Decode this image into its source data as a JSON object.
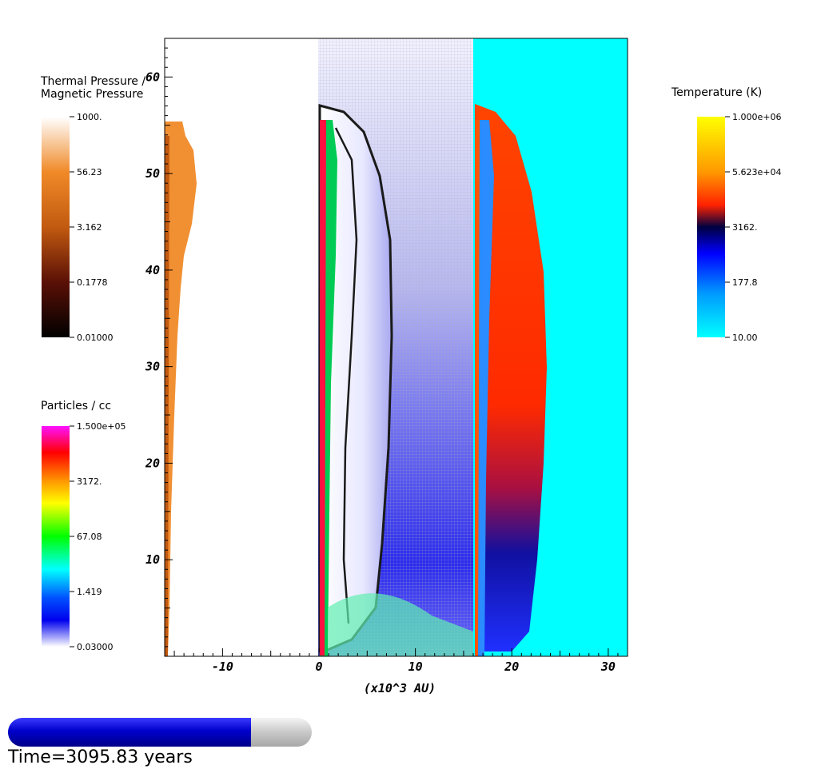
{
  "plot": {
    "x_axis_title": "(x10^3 AU)",
    "x_ticks": [
      "-10",
      "0",
      "10",
      "20",
      "30"
    ],
    "y_ticks": [
      "10",
      "20",
      "30",
      "40",
      "50",
      "60"
    ],
    "x_range": [
      -16,
      32
    ],
    "y_range": [
      0,
      64
    ]
  },
  "legends": {
    "pressure": {
      "title": "Thermal Pressure /\nMagnetic Pressure",
      "labels": [
        "1000.",
        "56.23",
        "3.162",
        "0.1778",
        "0.01000"
      ],
      "colors": [
        "#ffffff",
        "#f08a28",
        "#c25a10",
        "#5a1006",
        "#000000"
      ]
    },
    "density": {
      "title": "Particles / cc",
      "labels": [
        "1.500e+05",
        "3172.",
        "67.08",
        "1.419",
        "0.03000"
      ],
      "colors": [
        "#ff10ff",
        "#ff0000",
        "#ff9900",
        "#ffff00",
        "#00ff00",
        "#00ffff",
        "#0050ff",
        "#0000ee",
        "#ffffff"
      ]
    },
    "temperature": {
      "title": "Temperature (K)",
      "labels": [
        "1.000e+06",
        "5.623e+04",
        "3162.",
        "177.8",
        "10.00"
      ],
      "colors": [
        "#ffff00",
        "#ff9900",
        "#ff2200",
        "#000040",
        "#0000ff",
        "#0099ff",
        "#00ffff"
      ]
    }
  },
  "progress": {
    "fraction": 0.8,
    "fill_color": "#0000cc"
  },
  "time_label": "Time=3095.83 years"
}
